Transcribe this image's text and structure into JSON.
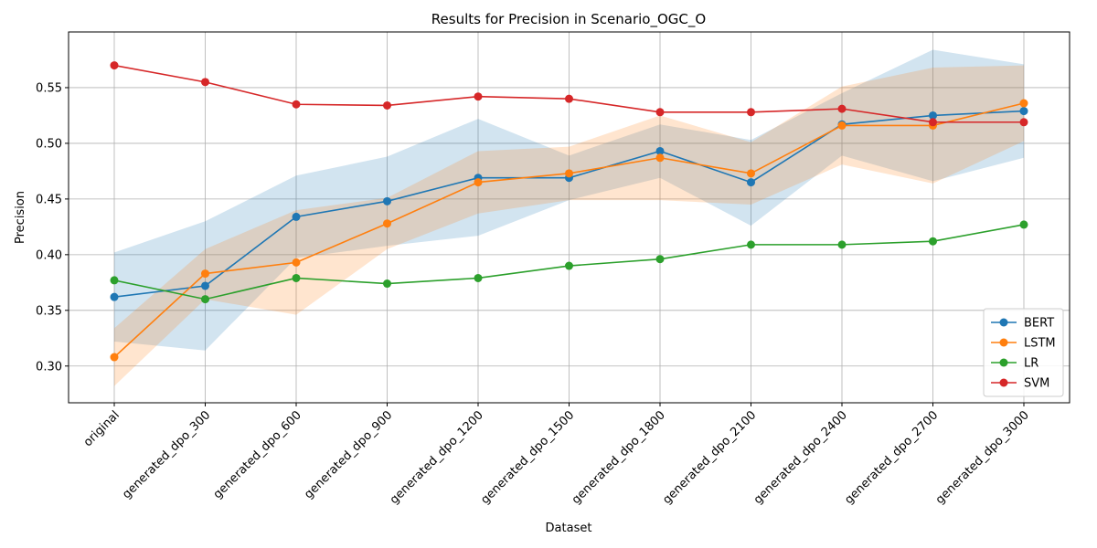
{
  "chart_data": {
    "type": "line",
    "title": "Results for Precision in Scenario_OGC_O",
    "xlabel": "Dataset",
    "ylabel": "Precision",
    "categories": [
      "original",
      "generated_dpo_300",
      "generated_dpo_600",
      "generated_dpo_900",
      "generated_dpo_1200",
      "generated_dpo_1500",
      "generated_dpo_1800",
      "generated_dpo_2100",
      "generated_dpo_2400",
      "generated_dpo_2700",
      "generated_dpo_3000"
    ],
    "ylim": [
      0.267,
      0.6
    ],
    "yticks": [
      "0.30",
      "0.35",
      "0.40",
      "0.45",
      "0.50",
      "0.55"
    ],
    "grid": true,
    "legend_position": "lower-right",
    "series": [
      {
        "name": "BERT",
        "color": "#1f77b4",
        "values": [
          0.362,
          0.372,
          0.434,
          0.448,
          0.469,
          0.469,
          0.493,
          0.465,
          0.517,
          0.525,
          0.529
        ],
        "band_low": [
          0.322,
          0.314,
          0.397,
          0.408,
          0.417,
          0.449,
          0.469,
          0.426,
          0.489,
          0.466,
          0.487
        ],
        "band_high": [
          0.402,
          0.43,
          0.471,
          0.488,
          0.522,
          0.489,
          0.517,
          0.503,
          0.545,
          0.584,
          0.571
        ]
      },
      {
        "name": "LSTM",
        "color": "#ff7f0e",
        "values": [
          0.308,
          0.383,
          0.393,
          0.428,
          0.465,
          0.473,
          0.487,
          0.473,
          0.516,
          0.516,
          0.536
        ],
        "band_low": [
          0.282,
          0.36,
          0.346,
          0.405,
          0.437,
          0.449,
          0.449,
          0.445,
          0.481,
          0.464,
          0.502
        ],
        "band_high": [
          0.334,
          0.405,
          0.44,
          0.451,
          0.493,
          0.497,
          0.525,
          0.501,
          0.551,
          0.568,
          0.57
        ]
      },
      {
        "name": "LR",
        "color": "#2ca02c",
        "values": [
          0.377,
          0.36,
          0.379,
          0.374,
          0.379,
          0.39,
          0.396,
          0.409,
          0.409,
          0.412,
          0.427
        ]
      },
      {
        "name": "SVM",
        "color": "#d62728",
        "values": [
          0.57,
          0.555,
          0.535,
          0.534,
          0.542,
          0.54,
          0.528,
          0.528,
          0.531,
          0.519,
          0.519
        ]
      }
    ]
  }
}
